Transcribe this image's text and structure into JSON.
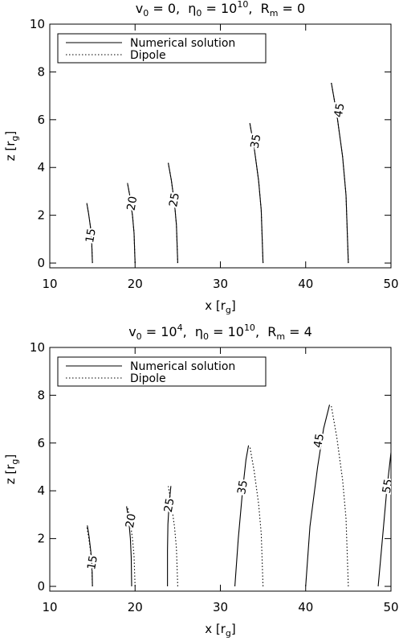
{
  "chart_data": [
    {
      "type": "line",
      "title": [
        {
          "text": "v",
          "pos": "base"
        },
        {
          "text": "0",
          "pos": "sub"
        },
        {
          "text": " = 0,  η",
          "pos": "base"
        },
        {
          "text": "0",
          "pos": "sub"
        },
        {
          "text": " = 10",
          "pos": "base"
        },
        {
          "text": "10",
          "pos": "sup"
        },
        {
          "text": ",  R",
          "pos": "base"
        },
        {
          "text": "m",
          "pos": "sub"
        },
        {
          "text": " = 0",
          "pos": "base"
        }
      ],
      "x_label": [
        {
          "text": "x [r",
          "pos": "base"
        },
        {
          "text": "g",
          "pos": "sub"
        },
        {
          "text": "]",
          "pos": "base"
        }
      ],
      "y_label": [
        {
          "text": "z [r",
          "pos": "base"
        },
        {
          "text": "g",
          "pos": "sub"
        },
        {
          "text": "]",
          "pos": "base"
        }
      ],
      "xlim": [
        10,
        50
      ],
      "xticks": [
        10,
        20,
        30,
        40,
        50
      ],
      "ylim": [
        -0.2,
        10
      ],
      "yticks": [
        0,
        2,
        4,
        6,
        8,
        10
      ],
      "legend": "upper left",
      "series": [
        {
          "name": "Numerical solution",
          "color": "#000000",
          "linestyle": "solid",
          "x": [
            15,
            14.91,
            14.78,
            14.55,
            14.34,
            null,
            20,
            19.88,
            19.7,
            19.41,
            19.11,
            null,
            25,
            24.85,
            24.63,
            24.26,
            23.89,
            null,
            35,
            34.79,
            34.48,
            33.96,
            33.45,
            null,
            45,
            44.73,
            44.33,
            43.66,
            43.01
          ],
          "y": [
            0,
            0.95,
            1.48,
            2.07,
            2.51,
            null,
            0,
            1.26,
            1.98,
            2.76,
            3.35,
            null,
            0,
            1.58,
            2.47,
            3.45,
            4.19,
            null,
            0,
            2.21,
            3.46,
            4.83,
            5.86,
            null,
            0,
            2.84,
            4.45,
            6.21,
            7.54
          ]
        },
        {
          "name": "Dipole",
          "color": "#000000",
          "linestyle": "dotted",
          "x": [
            15,
            14.91,
            14.78,
            14.55,
            14.34,
            null,
            20,
            19.88,
            19.7,
            19.41,
            19.11,
            null,
            25,
            24.85,
            24.63,
            24.26,
            23.89,
            null,
            35,
            34.79,
            34.48,
            33.96,
            33.45,
            null,
            45,
            44.73,
            44.33,
            43.66,
            43.01
          ],
          "y": [
            0,
            0.95,
            1.48,
            2.07,
            2.51,
            null,
            0,
            1.26,
            1.98,
            2.76,
            3.35,
            null,
            0,
            1.58,
            2.47,
            3.45,
            4.19,
            null,
            0,
            2.21,
            3.46,
            4.83,
            5.86,
            null,
            0,
            2.84,
            4.45,
            6.21,
            7.54
          ]
        }
      ],
      "annotations": [
        {
          "text": "15",
          "x": 14.75,
          "y": 1.15
        },
        {
          "text": "20",
          "x": 19.6,
          "y": 2.5
        },
        {
          "text": "25",
          "x": 24.55,
          "y": 2.65
        },
        {
          "text": "35",
          "x": 34.1,
          "y": 5.1
        },
        {
          "text": "45",
          "x": 43.9,
          "y": 6.4
        }
      ]
    },
    {
      "type": "line",
      "title": [
        {
          "text": "v",
          "pos": "base"
        },
        {
          "text": "0",
          "pos": "sub"
        },
        {
          "text": " = 10",
          "pos": "base"
        },
        {
          "text": "4",
          "pos": "sup"
        },
        {
          "text": ",  η",
          "pos": "base"
        },
        {
          "text": "0",
          "pos": "sub"
        },
        {
          "text": " = 10",
          "pos": "base"
        },
        {
          "text": "10",
          "pos": "sup"
        },
        {
          "text": ",  R",
          "pos": "base"
        },
        {
          "text": "m",
          "pos": "sub"
        },
        {
          "text": " = 4",
          "pos": "base"
        }
      ],
      "x_label": [
        {
          "text": "x [r",
          "pos": "base"
        },
        {
          "text": "g",
          "pos": "sub"
        },
        {
          "text": "]",
          "pos": "base"
        }
      ],
      "y_label": [
        {
          "text": "z [r",
          "pos": "base"
        },
        {
          "text": "g",
          "pos": "sub"
        },
        {
          "text": "]",
          "pos": "base"
        }
      ],
      "xlim": [
        10,
        50
      ],
      "xticks": [
        10,
        20,
        30,
        40,
        50
      ],
      "ylim": [
        -0.2,
        10
      ],
      "yticks": [
        0,
        2,
        4,
        6,
        8,
        10
      ],
      "legend": "upper left",
      "series": [
        {
          "name": "Numerical solution",
          "color": "#000000",
          "linestyle": "solid",
          "x": [
            15,
            14.95,
            14.8,
            14.6,
            14.4,
            null,
            19.6,
            19.55,
            19.45,
            19.25,
            19.0,
            null,
            23.8,
            23.8,
            23.85,
            24.0,
            24.2,
            null,
            31.7,
            32.1,
            32.6,
            33.0,
            33.3,
            null,
            40,
            40.5,
            41.4,
            42.1,
            42.8,
            null,
            48.5,
            49,
            49.5,
            50
          ],
          "y": [
            0,
            0.95,
            1.5,
            2.1,
            2.55,
            null,
            0,
            1.2,
            2,
            2.8,
            3.35,
            null,
            0,
            1.5,
            2.6,
            3.5,
            4.2,
            null,
            0,
            2,
            4,
            5.3,
            5.9,
            null,
            0,
            2.5,
            5,
            6.6,
            7.6,
            null,
            0,
            2,
            4,
            5.6
          ]
        },
        {
          "name": "Dipole",
          "color": "#000000",
          "linestyle": "dotted",
          "x": [
            15,
            14.91,
            14.78,
            14.55,
            14.34,
            null,
            20,
            19.88,
            19.7,
            19.41,
            19.11,
            null,
            25,
            24.85,
            24.63,
            24.26,
            23.89,
            null,
            35,
            34.79,
            34.48,
            33.96,
            33.45,
            null,
            45,
            44.73,
            44.33,
            43.66,
            43.01
          ],
          "y": [
            0,
            0.95,
            1.48,
            2.07,
            2.51,
            null,
            0,
            1.26,
            1.98,
            2.76,
            3.35,
            null,
            0,
            1.58,
            2.47,
            3.45,
            4.19,
            null,
            0,
            2.21,
            3.46,
            4.83,
            5.86,
            null,
            0,
            2.84,
            4.45,
            6.21,
            7.54
          ]
        }
      ],
      "annotations": [
        {
          "text": "15",
          "x": 14.95,
          "y": 1.0
        },
        {
          "text": "20",
          "x": 19.45,
          "y": 2.75
        },
        {
          "text": "25",
          "x": 23.95,
          "y": 3.4
        },
        {
          "text": "35",
          "x": 32.55,
          "y": 4.15
        },
        {
          "text": "45",
          "x": 41.5,
          "y": 6.1
        },
        {
          "text": "55",
          "x": 49.55,
          "y": 4.2
        }
      ]
    }
  ]
}
